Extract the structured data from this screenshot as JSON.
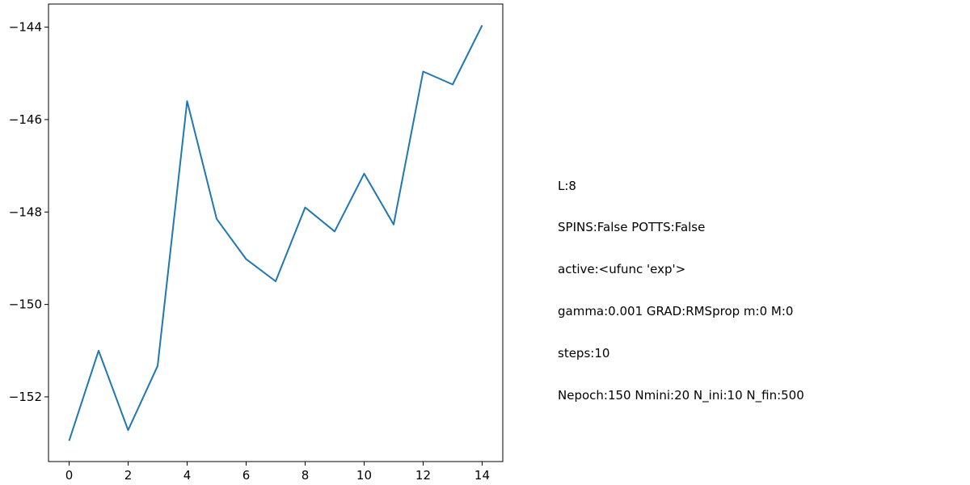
{
  "chart_data": {
    "type": "line",
    "title": "",
    "xlabel": "",
    "ylabel": "",
    "x": [
      0,
      1,
      2,
      3,
      4,
      5,
      6,
      7,
      8,
      9,
      10,
      11,
      12,
      13,
      14
    ],
    "series": [
      {
        "color": "#1f77b4",
        "values": [
          -152.95,
          -151.0,
          -152.72,
          -151.33,
          -145.6,
          -148.15,
          -149.02,
          -149.5,
          -147.9,
          -148.42,
          -147.17,
          -148.27,
          -144.96,
          -145.24,
          -143.96
        ]
      }
    ],
    "xlim": [
      -0.7,
      14.7
    ],
    "ylim": [
      -153.4,
      -143.5
    ],
    "xticks": [
      0,
      2,
      4,
      6,
      8,
      10,
      12,
      14
    ],
    "yticks": [
      -152,
      -150,
      -148,
      -146,
      -144
    ],
    "xtick_labels": [
      "0",
      "2",
      "4",
      "6",
      "8",
      "10",
      "12",
      "14"
    ],
    "ytick_labels": [
      "−152",
      "−150",
      "−148",
      "−146",
      "−144"
    ],
    "grid": false,
    "annotation_lines": [
      "L:8",
      "SPINS:False POTTS:False",
      "active:<ufunc 'exp'>",
      "gamma:0.001 GRAD:RMSprop m:0 M:0",
      "steps:10",
      "Nepoch:150 Nmini:20 N_ini:10 N_fin:500"
    ]
  }
}
